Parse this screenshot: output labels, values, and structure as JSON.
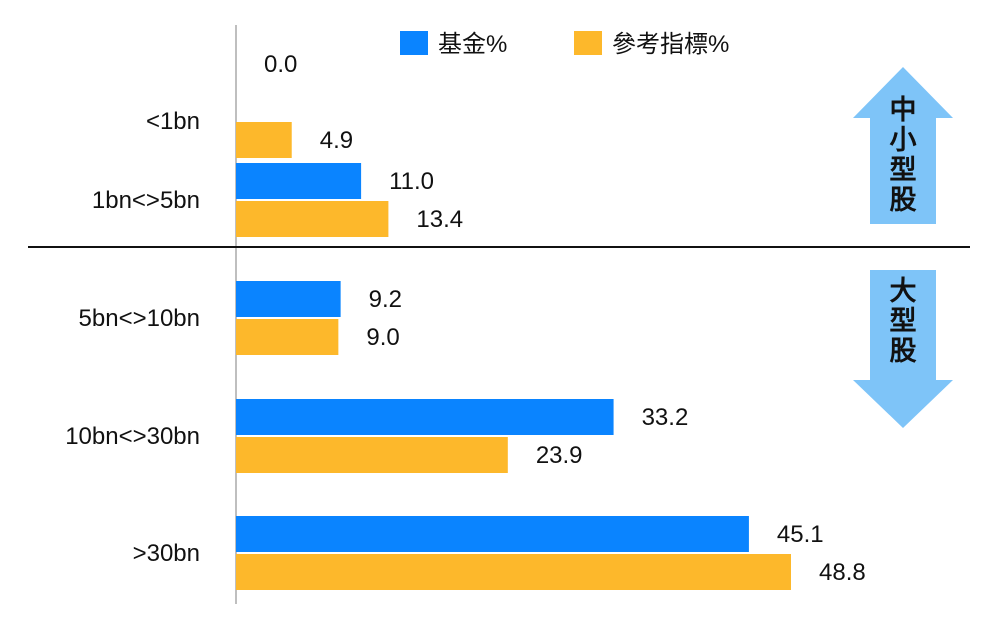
{
  "chart_data": {
    "type": "bar",
    "orientation": "horizontal",
    "categories": [
      "<1bn",
      "1bn<>5bn",
      "5bn<>10bn",
      "10bn<>30bn",
      ">30bn"
    ],
    "series": [
      {
        "name": "基金%",
        "color": "#0a84ff",
        "values": [
          0.0,
          11.0,
          9.2,
          33.2,
          45.1
        ]
      },
      {
        "name": "參考指標%",
        "color": "#fdb82b",
        "values": [
          4.9,
          13.4,
          9.0,
          23.9,
          48.8
        ]
      }
    ],
    "value_labels": [
      [
        "0.0",
        "11.0",
        "9.2",
        "33.2",
        "45.1"
      ],
      [
        "4.9",
        "13.4",
        "9.0",
        "23.9",
        "48.8"
      ]
    ],
    "legend_position": "top",
    "grid": false,
    "xlim": [
      0,
      50
    ],
    "divider_after_category": 1,
    "annotations": [
      {
        "label": "中小型股",
        "chars": [
          "中",
          "小",
          "型",
          "股"
        ],
        "arrow": "up",
        "color": "#7ec4f8"
      },
      {
        "label": "大型股",
        "chars": [
          "大",
          "型",
          "股"
        ],
        "arrow": "down",
        "color": "#7ec4f8"
      }
    ]
  }
}
